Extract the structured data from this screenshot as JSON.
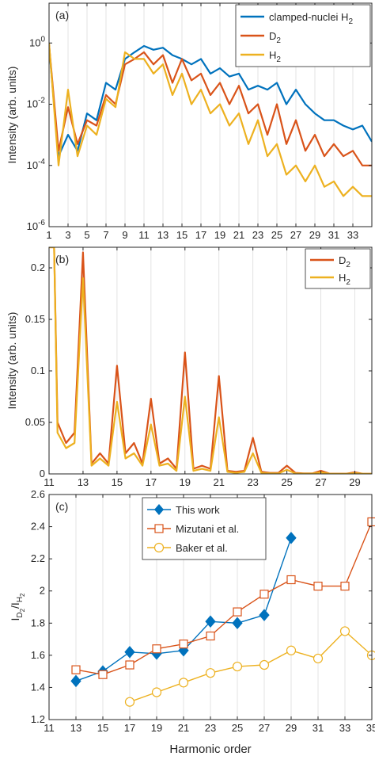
{
  "figure": {
    "xlabel": "Harmonic order"
  },
  "chart_data": [
    {
      "type": "line",
      "panel_label": "(a)",
      "title": "",
      "xlabel": "",
      "ylabel": "Intensity (arb. units)",
      "xlim": [
        1,
        35
      ],
      "ylim": [
        1e-06,
        20
      ],
      "yscale": "log",
      "x_ticks": [
        1,
        3,
        5,
        7,
        9,
        11,
        13,
        15,
        17,
        19,
        21,
        23,
        25,
        27,
        29,
        31,
        33
      ],
      "x_tick_labels": [
        "1",
        "3",
        "5",
        "7",
        "9",
        "11",
        "13",
        "15",
        "17",
        "19",
        "21",
        "23",
        "25",
        "27",
        "29",
        "31",
        "33"
      ],
      "y_ticks": [
        1e-06,
        0.0001,
        0.01,
        1
      ],
      "y_tick_labels": [
        "10",
        "10",
        "10",
        "10"
      ],
      "y_tick_exponents": [
        "-6",
        "-4",
        "-2",
        "0"
      ],
      "grid": "vertical",
      "legend_position": "top-right",
      "series": [
        {
          "name": "clamped-nuclei H",
          "name_subscript": "2",
          "color": "#0072bd",
          "x": [
            1,
            2,
            3,
            4,
            5,
            6,
            7,
            8,
            9,
            10,
            11,
            12,
            13,
            14,
            15,
            16,
            17,
            18,
            19,
            20,
            21,
            22,
            23,
            24,
            25,
            26,
            27,
            28,
            29,
            30,
            31,
            32,
            33,
            34,
            35
          ],
          "y": [
            0.8,
            0.0002,
            0.001,
            0.0003,
            0.005,
            0.003,
            0.05,
            0.03,
            0.3,
            0.5,
            0.8,
            0.6,
            0.7,
            0.4,
            0.3,
            0.2,
            0.3,
            0.1,
            0.15,
            0.08,
            0.1,
            0.03,
            0.04,
            0.03,
            0.05,
            0.01,
            0.03,
            0.01,
            0.005,
            0.003,
            0.003,
            0.002,
            0.0015,
            0.002,
            0.0006
          ]
        },
        {
          "name": "D",
          "name_subscript": "2",
          "color": "#d95319",
          "x": [
            1,
            2,
            3,
            4,
            5,
            6,
            7,
            8,
            9,
            10,
            11,
            12,
            13,
            14,
            15,
            16,
            17,
            18,
            19,
            20,
            21,
            22,
            23,
            24,
            25,
            26,
            27,
            28,
            29,
            30,
            31,
            32,
            33,
            34,
            35
          ],
          "y": [
            0.9,
            0.0003,
            0.008,
            0.0005,
            0.003,
            0.002,
            0.02,
            0.01,
            0.2,
            0.3,
            0.5,
            0.2,
            0.4,
            0.05,
            0.3,
            0.06,
            0.1,
            0.02,
            0.05,
            0.01,
            0.04,
            0.005,
            0.01,
            0.001,
            0.01,
            0.0005,
            0.003,
            0.0003,
            0.001,
            0.0002,
            0.0005,
            0.0002,
            0.0003,
            0.0001,
            0.0001
          ]
        },
        {
          "name": "H",
          "name_subscript": "2",
          "color": "#edb120",
          "x": [
            1,
            2,
            3,
            4,
            5,
            6,
            7,
            8,
            9,
            10,
            11,
            12,
            13,
            14,
            15,
            16,
            17,
            18,
            19,
            20,
            21,
            22,
            23,
            24,
            25,
            26,
            27,
            28,
            29,
            30,
            31,
            32,
            33,
            34,
            35
          ],
          "y": [
            1,
            0.0001,
            0.03,
            0.0002,
            0.002,
            0.001,
            0.015,
            0.008,
            0.5,
            0.3,
            0.3,
            0.1,
            0.2,
            0.02,
            0.1,
            0.01,
            0.03,
            0.005,
            0.01,
            0.002,
            0.005,
            0.0005,
            0.003,
            0.0002,
            0.0005,
            5e-05,
            0.0001,
            3e-05,
            0.0001,
            2e-05,
            3e-05,
            1e-05,
            2e-05,
            1e-05,
            1e-05
          ]
        }
      ]
    },
    {
      "type": "line",
      "panel_label": "(b)",
      "title": "",
      "xlabel": "",
      "ylabel": "Intensity (arb. units)",
      "xlim": [
        11,
        30
      ],
      "ylim": [
        0,
        0.22
      ],
      "x_ticks": [
        11,
        13,
        15,
        17,
        19,
        21,
        23,
        25,
        27,
        29
      ],
      "x_tick_labels": [
        "11",
        "13",
        "15",
        "17",
        "19",
        "21",
        "23",
        "25",
        "27",
        "29"
      ],
      "y_ticks": [
        0,
        0.05,
        0.1,
        0.15,
        0.2
      ],
      "y_tick_labels": [
        "0",
        "0.05",
        "0.1",
        "0.15",
        "0.2"
      ],
      "grid": "vertical",
      "legend_position": "top-right",
      "series": [
        {
          "name": "D",
          "name_subscript": "2",
          "color": "#d95319",
          "x": [
            11,
            11.3,
            11.5,
            12,
            12.5,
            13,
            13.5,
            14,
            14.5,
            15,
            15.5,
            16,
            16.5,
            17,
            17.5,
            18,
            18.5,
            19,
            19.5,
            20,
            20.5,
            21,
            21.5,
            22,
            22.5,
            23,
            23.5,
            24,
            24.5,
            25,
            25.5,
            26,
            26.5,
            27,
            27.5,
            28,
            28.5,
            29,
            29.5,
            30
          ],
          "y": [
            0.22,
            0.22,
            0.05,
            0.03,
            0.04,
            0.215,
            0.01,
            0.02,
            0.01,
            0.105,
            0.02,
            0.03,
            0.01,
            0.073,
            0.01,
            0.015,
            0.005,
            0.118,
            0.005,
            0.008,
            0.005,
            0.095,
            0.003,
            0.002,
            0.003,
            0.035,
            0.002,
            0.001,
            0.001,
            0.008,
            0.001,
            0.0005,
            0.0005,
            0.003,
            0.0003,
            0.0002,
            0.0002,
            0.0015,
            0.0001,
            0.0001
          ]
        },
        {
          "name": "H",
          "name_subscript": "2",
          "color": "#edb120",
          "x": [
            11,
            11.3,
            11.5,
            12,
            12.5,
            13,
            13.5,
            14,
            14.5,
            15,
            15.5,
            16,
            16.5,
            17,
            17.5,
            18,
            18.5,
            19,
            19.5,
            20,
            20.5,
            21,
            21.5,
            22,
            22.5,
            23,
            23.5,
            24,
            24.5,
            25,
            25.5,
            26,
            26.5,
            27,
            27.5,
            28,
            28.5,
            29,
            29.5,
            30
          ],
          "y": [
            0.22,
            0.22,
            0.04,
            0.025,
            0.03,
            0.19,
            0.008,
            0.015,
            0.008,
            0.07,
            0.015,
            0.02,
            0.008,
            0.048,
            0.008,
            0.01,
            0.003,
            0.075,
            0.003,
            0.005,
            0.003,
            0.055,
            0.002,
            0.001,
            0.002,
            0.02,
            0.001,
            0.0005,
            0.0005,
            0.004,
            0.0005,
            0.0003,
            0.0003,
            0.0015,
            0.0002,
            0.0001,
            0.0001,
            0.0008,
            0.0001,
            0.0001
          ]
        }
      ]
    },
    {
      "type": "line",
      "panel_label": "(c)",
      "title": "",
      "xlabel": "Harmonic order",
      "ylabel": "I",
      "ylabel_subscripts": [
        "D",
        "2"
      ],
      "ylabel_sep": "/I",
      "ylabel_subscripts2": [
        "H",
        "2"
      ],
      "xlim": [
        11,
        35
      ],
      "ylim": [
        1.2,
        2.6
      ],
      "x_ticks": [
        11,
        13,
        15,
        17,
        19,
        21,
        23,
        25,
        27,
        29,
        31,
        33,
        35
      ],
      "x_tick_labels": [
        "11",
        "13",
        "15",
        "17",
        "19",
        "21",
        "23",
        "25",
        "27",
        "29",
        "31",
        "33",
        "35"
      ],
      "y_ticks": [
        1.2,
        1.4,
        1.6,
        1.8,
        2.0,
        2.2,
        2.4,
        2.6
      ],
      "y_tick_labels": [
        "1.2",
        "1.4",
        "1.6",
        "1.8",
        "2",
        "2.2",
        "2.4",
        "2.6"
      ],
      "grid": "vertical",
      "legend_position": "top-center",
      "series": [
        {
          "name": "This work",
          "color": "#0072bd",
          "marker": "diamond-filled",
          "x": [
            13,
            15,
            17,
            19,
            21,
            23,
            25,
            27,
            29
          ],
          "y": [
            1.44,
            1.5,
            1.62,
            1.61,
            1.63,
            1.81,
            1.8,
            1.85,
            2.33
          ]
        },
        {
          "name": "Mizutani et al.",
          "color": "#d95319",
          "marker": "square-open",
          "x": [
            13,
            15,
            17,
            19,
            21,
            23,
            25,
            27,
            29,
            31,
            33,
            35
          ],
          "y": [
            1.51,
            1.48,
            1.54,
            1.64,
            1.67,
            1.72,
            1.87,
            1.98,
            2.07,
            2.03,
            2.03,
            2.43
          ]
        },
        {
          "name": "Baker et al.",
          "color": "#edb120",
          "marker": "circle-open",
          "x": [
            17,
            19,
            21,
            23,
            25,
            27,
            29,
            31,
            33,
            35
          ],
          "y": [
            1.31,
            1.37,
            1.43,
            1.49,
            1.53,
            1.54,
            1.63,
            1.58,
            1.75,
            1.6
          ]
        }
      ]
    }
  ]
}
